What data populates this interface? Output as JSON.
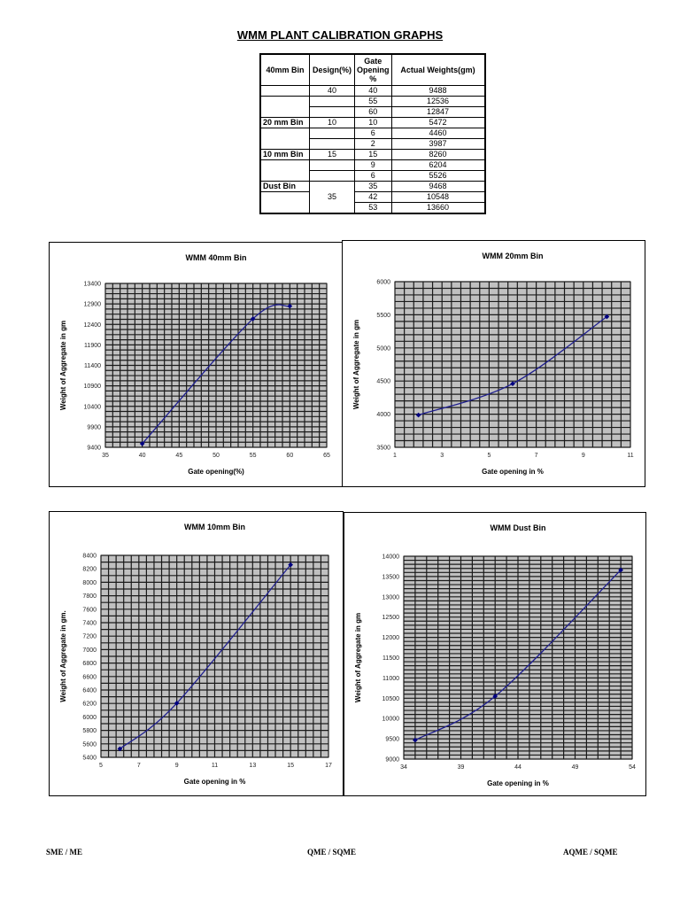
{
  "title": "WMM PLANT CALIBRATION GRAPHS",
  "table": {
    "headers": [
      "40mm Bin",
      "Design(%)",
      "Gate Opening %",
      "Actual Weights(gm)"
    ],
    "rows": [
      {
        "bin": "",
        "design": "40",
        "gate": "40",
        "weight": "9488"
      },
      {
        "bin": "",
        "design": "",
        "gate": "55",
        "weight": "12536"
      },
      {
        "bin": "",
        "design": "",
        "gate": "60",
        "weight": "12847"
      },
      {
        "bin": "20 mm Bin",
        "design": "10",
        "gate": "10",
        "weight": "5472"
      },
      {
        "bin": "",
        "design": "",
        "gate": "6",
        "weight": "4460"
      },
      {
        "bin": "",
        "design": "",
        "gate": "2",
        "weight": "3987"
      },
      {
        "bin": "10 mm Bin",
        "design": "15",
        "gate": "15",
        "weight": "8260"
      },
      {
        "bin": "",
        "design": "",
        "gate": "9",
        "weight": "6204"
      },
      {
        "bin": "",
        "design": "",
        "gate": "6",
        "weight": "5526"
      },
      {
        "bin": "Dust Bin",
        "design": "35",
        "gate": "35",
        "weight": "9468"
      },
      {
        "bin": "",
        "design": "",
        "gate": "42",
        "weight": "10548"
      },
      {
        "bin": "",
        "design": "",
        "gate": "53",
        "weight": "13660"
      }
    ]
  },
  "chart_data": [
    {
      "type": "line",
      "title": "WMM 40mm Bin",
      "xlabel": "Gate opening(%)",
      "ylabel": "Weight of Aggregate in gm",
      "x": [
        40,
        55,
        60
      ],
      "values": [
        9488,
        12536,
        12847
      ],
      "xlim": [
        35,
        65
      ],
      "ylim": [
        9400,
        13400
      ],
      "xticks": [
        35,
        40,
        45,
        50,
        55,
        60,
        65
      ],
      "yticks": [
        9400,
        9900,
        10400,
        10900,
        11400,
        11900,
        12400,
        12900,
        13400
      ],
      "grid": true,
      "smooth": true,
      "line_color": "#1f1f8f",
      "plot_bg": "#c0c0c0"
    },
    {
      "type": "line",
      "title": "WMM 20mm Bin",
      "xlabel": "Gate opening in %",
      "ylabel": "Weight of Aggregate in gm",
      "x": [
        2,
        6,
        10
      ],
      "values": [
        3987,
        4460,
        5472
      ],
      "xlim": [
        1,
        11
      ],
      "ylim": [
        3500,
        6000
      ],
      "xticks": [
        1,
        3,
        5,
        7,
        9,
        11
      ],
      "yticks": [
        3500,
        4000,
        4500,
        5000,
        5500,
        6000
      ],
      "grid": true,
      "smooth": true,
      "line_color": "#1f1f8f",
      "plot_bg": "#c0c0c0"
    },
    {
      "type": "line",
      "title": "WMM 10mm Bin",
      "xlabel": "Gate opening in %",
      "ylabel": "Weight of Aggregate in gm.",
      "x": [
        6,
        9,
        15
      ],
      "values": [
        5526,
        6204,
        8260
      ],
      "xlim": [
        5,
        17
      ],
      "ylim": [
        5400,
        8400
      ],
      "xticks": [
        5,
        7,
        9,
        11,
        13,
        15,
        17
      ],
      "yticks": [
        5400,
        5600,
        5800,
        6000,
        6200,
        6400,
        6600,
        6800,
        7000,
        7200,
        7400,
        7600,
        7800,
        8000,
        8200,
        8400
      ],
      "grid": true,
      "smooth": true,
      "line_color": "#1f1f8f",
      "plot_bg": "#c0c0c0"
    },
    {
      "type": "line",
      "title": "WMM Dust Bin",
      "xlabel": "Gate opening in %",
      "ylabel": "Weight of Aggregate in gm",
      "x": [
        35,
        42,
        53
      ],
      "values": [
        9468,
        10548,
        13660
      ],
      "xlim": [
        34,
        54
      ],
      "ylim": [
        9000,
        14000
      ],
      "xticks": [
        34,
        39,
        44,
        49,
        54
      ],
      "yticks": [
        9000,
        9500,
        10000,
        10500,
        11000,
        11500,
        12000,
        12500,
        13000,
        13500,
        14000
      ],
      "grid": true,
      "smooth": true,
      "line_color": "#1f1f8f",
      "plot_bg": "#c0c0c0"
    }
  ],
  "footer": {
    "left": "SME / ME",
    "center": "QME  /  SQME",
    "right": "AQME  /  SQME"
  }
}
